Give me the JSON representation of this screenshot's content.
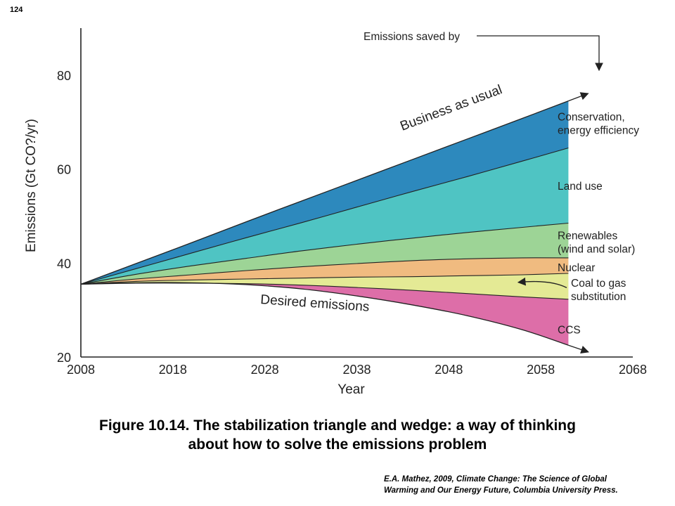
{
  "page_number": "124",
  "caption": {
    "line1": "Figure 10.14.  The stabilization triangle and wedge: a way of thinking",
    "line2": "about how to solve the emissions problem"
  },
  "citation": {
    "line1": "E.A. Mathez, 2009, Climate Change: The Science of Global",
    "line2": "Warming and Our Energy Future, Columbia University Press."
  },
  "chart_data": {
    "type": "area",
    "title": "",
    "xlabel": "Year",
    "ylabel": "Emissions (Gt CO?/yr)",
    "xlim": [
      2008,
      2068
    ],
    "ylim": [
      20,
      90
    ],
    "xticks": [
      "2008",
      "2018",
      "2028",
      "2038",
      "2048",
      "2058",
      "2068"
    ],
    "yticks": [
      "20",
      "40",
      "60",
      "80"
    ],
    "grid": false,
    "x": [
      2008,
      2014,
      2020,
      2026,
      2032,
      2038,
      2044,
      2050,
      2056,
      2061
    ],
    "boundaries": [
      {
        "name": "Business as usual",
        "values": [
          35.5,
          39.9,
          44.3,
          48.8,
          53.2,
          57.6,
          62.0,
          66.4,
          70.8,
          74.5
        ]
      },
      {
        "values": [
          35.5,
          38.8,
          42.1,
          45.4,
          48.6,
          51.9,
          55.2,
          58.4,
          61.7,
          64.5
        ]
      },
      {
        "values": [
          35.5,
          37.6,
          39.4,
          41.0,
          42.6,
          44.0,
          45.3,
          46.5,
          47.6,
          48.5
        ]
      },
      {
        "values": [
          35.5,
          36.6,
          37.5,
          38.4,
          39.2,
          39.9,
          40.5,
          40.9,
          41.1,
          41.1
        ]
      },
      {
        "values": [
          35.5,
          36.1,
          36.4,
          36.6,
          36.8,
          37.0,
          37.1,
          37.3,
          37.5,
          37.8
        ]
      },
      {
        "values": [
          35.5,
          35.7,
          35.7,
          35.6,
          35.3,
          34.8,
          34.2,
          33.5,
          32.8,
          32.3
        ]
      },
      {
        "name": "Desired emissions",
        "values": [
          35.5,
          35.8,
          35.8,
          35.4,
          34.5,
          33.0,
          31.1,
          28.8,
          25.8,
          22.5
        ]
      }
    ],
    "wedges": [
      {
        "name": "Conservation,\nenergy efficiency",
        "color": "#2d89bd"
      },
      {
        "name": "Land use",
        "color": "#4fc4c3"
      },
      {
        "name": "Renewables\n(wind and solar)",
        "color": "#9dd496"
      },
      {
        "name": "Nuclear",
        "color": "#f0bb80"
      },
      {
        "name": "Coal to gas\nsubstitution",
        "color": "#e4ea95"
      },
      {
        "name": "CCS",
        "color": "#dd6ea8"
      }
    ],
    "annotations": [
      "Emissions saved by",
      "Business as usual",
      "Desired emissions"
    ]
  }
}
